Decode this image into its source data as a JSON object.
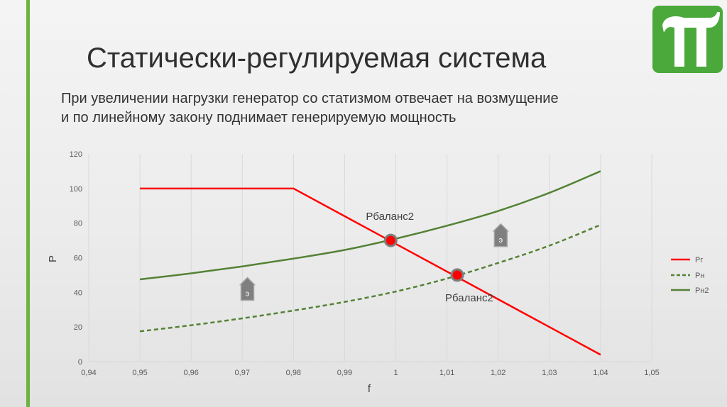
{
  "slide": {
    "title": "Статически-регулируемая система",
    "subtitle_line1": "При увеличении нагрузки генератор со статизмом отвечает на возмущение",
    "subtitle_line2": "и по линейному закону поднимает генерируемую мощность"
  },
  "colors": {
    "accent": "#6db33f",
    "red": "#ff0000",
    "green": "#548235",
    "logo": "#4aa93a"
  },
  "chart_data": {
    "type": "line",
    "title": "",
    "xlabel": "f",
    "ylabel": "P",
    "xlim": [
      0.94,
      1.05
    ],
    "ylim": [
      0,
      120
    ],
    "x_ticks": [
      "0,94",
      "0,95",
      "0,96",
      "0,97",
      "0,98",
      "0,99",
      "1",
      "1,01",
      "1,02",
      "1,03",
      "1,04",
      "1,05"
    ],
    "y_ticks": [
      "0",
      "20",
      "40",
      "60",
      "80",
      "100",
      "120"
    ],
    "grid": "vertical",
    "legend_position": "right",
    "series": [
      {
        "name": "Pг",
        "style": "solid",
        "color": "#ff0000",
        "x": [
          0.95,
          0.98,
          1.04
        ],
        "y": [
          100,
          100,
          4
        ]
      },
      {
        "name": "Pн",
        "style": "dashed",
        "color": "#548235",
        "x": [
          0.95,
          0.96,
          0.97,
          0.98,
          0.99,
          1.0,
          1.01,
          1.02,
          1.03,
          1.04
        ],
        "y": [
          17.5,
          21,
          25,
          29.5,
          34.5,
          40.5,
          48,
          57,
          67,
          79
        ]
      },
      {
        "name": "Pн2",
        "style": "solid",
        "color": "#548235",
        "x": [
          0.95,
          0.96,
          0.97,
          0.98,
          0.99,
          1.0,
          1.01,
          1.02,
          1.03,
          1.04
        ],
        "y": [
          47.5,
          51,
          55,
          59.5,
          64.5,
          71,
          78.5,
          87,
          97.5,
          110
        ]
      }
    ],
    "annotations": [
      {
        "text": "Pбаланс2",
        "x": 0.999,
        "y": 70
      },
      {
        "text": "Pбаланс2",
        "x": 1.012,
        "y": 50
      }
    ],
    "arrow_label": "э",
    "arrows": [
      {
        "x": 0.971,
        "y": 42
      },
      {
        "x": 1.0205,
        "y": 73
      }
    ]
  }
}
